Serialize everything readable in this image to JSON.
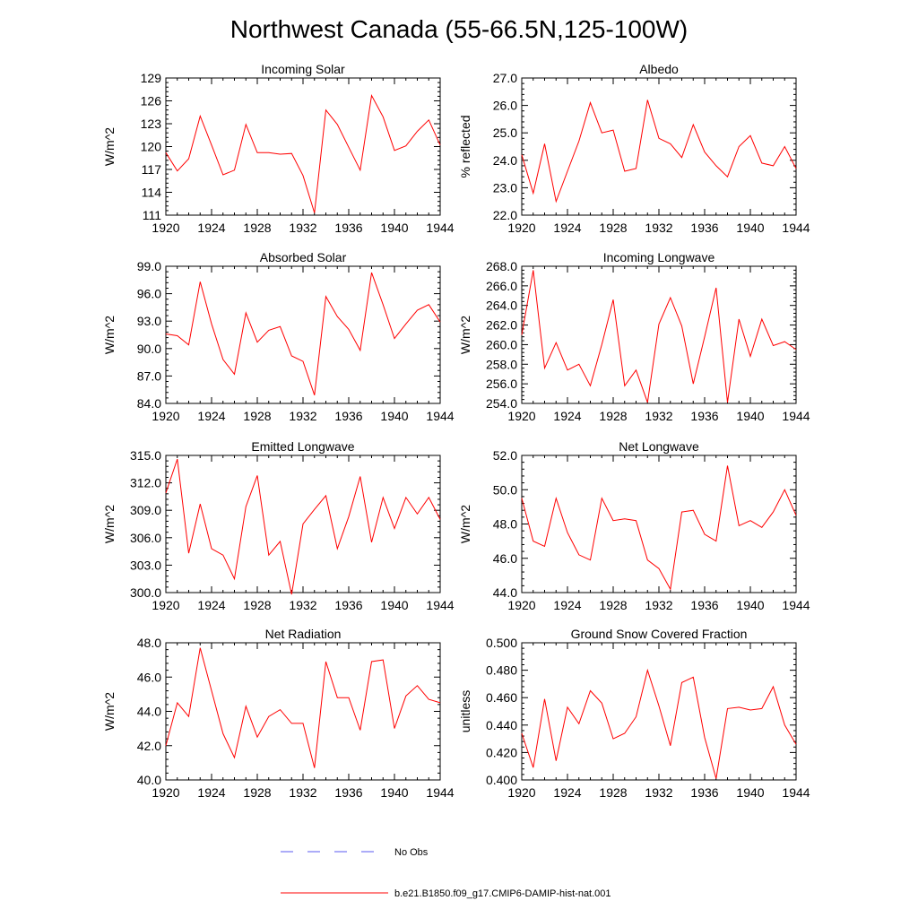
{
  "figure": {
    "title": "Northwest Canada (55-66.5N,125-100W)"
  },
  "legend": {
    "placement": "bottom-center",
    "items": [
      {
        "label": "No Obs",
        "color": "#5a5af0",
        "style": "dashed"
      },
      {
        "label": "b.e21.B1850.f09_g17.CMIP6-DAMIP-hist-nat.001",
        "color": "#ff0000",
        "style": "solid"
      }
    ]
  },
  "chart_data": [
    {
      "type": "line",
      "title": "Incoming Solar",
      "ylabel": "W/m^2",
      "xlabel": "",
      "x": [
        1920,
        1921,
        1922,
        1923,
        1924,
        1925,
        1926,
        1927,
        1928,
        1929,
        1930,
        1931,
        1932,
        1933,
        1934,
        1935,
        1936,
        1937,
        1938,
        1939,
        1940,
        1941,
        1942,
        1943,
        1944
      ],
      "xlim": [
        1920,
        1944
      ],
      "ylim": [
        111,
        129
      ],
      "xticks": [
        1920,
        1924,
        1928,
        1932,
        1936,
        1940,
        1944
      ],
      "yticks": [
        111,
        114,
        117,
        120,
        123,
        126,
        129
      ],
      "ytick_labels": [
        "111",
        "114",
        "117",
        "120",
        "123",
        "126",
        "129"
      ],
      "series": [
        {
          "color": "#ff0000",
          "values": [
            119.2,
            116.8,
            118.4,
            124.0,
            120.2,
            116.3,
            116.9,
            122.9,
            119.2,
            119.2,
            119.0,
            119.1,
            116.2,
            111.3,
            124.8,
            122.9,
            119.9,
            116.9,
            126.7,
            123.9,
            119.5,
            120.1,
            122.0,
            123.5,
            120.2
          ]
        }
      ]
    },
    {
      "type": "line",
      "title": "Albedo",
      "ylabel": "% reflected",
      "xlabel": "",
      "x": [
        1920,
        1921,
        1922,
        1923,
        1924,
        1925,
        1926,
        1927,
        1928,
        1929,
        1930,
        1931,
        1932,
        1933,
        1934,
        1935,
        1936,
        1937,
        1938,
        1939,
        1940,
        1941,
        1942,
        1943,
        1944
      ],
      "xlim": [
        1920,
        1944
      ],
      "ylim": [
        22.0,
        27.0
      ],
      "xticks": [
        1920,
        1924,
        1928,
        1932,
        1936,
        1940,
        1944
      ],
      "yticks": [
        22.0,
        23.0,
        24.0,
        25.0,
        26.0,
        27.0
      ],
      "ytick_labels": [
        "22.0",
        "23.0",
        "24.0",
        "25.0",
        "26.0",
        "27.0"
      ],
      "series": [
        {
          "color": "#ff0000",
          "values": [
            24.2,
            22.8,
            24.6,
            22.5,
            23.6,
            24.7,
            26.1,
            25.0,
            25.1,
            23.6,
            23.7,
            26.2,
            24.8,
            24.6,
            24.1,
            25.3,
            24.3,
            23.8,
            23.4,
            24.5,
            24.9,
            23.9,
            23.8,
            24.5,
            23.7
          ]
        }
      ]
    },
    {
      "type": "line",
      "title": "Absorbed Solar",
      "ylabel": "W/m^2",
      "xlabel": "",
      "x": [
        1920,
        1921,
        1922,
        1923,
        1924,
        1925,
        1926,
        1927,
        1928,
        1929,
        1930,
        1931,
        1932,
        1933,
        1934,
        1935,
        1936,
        1937,
        1938,
        1939,
        1940,
        1941,
        1942,
        1943,
        1944
      ],
      "xlim": [
        1920,
        1944
      ],
      "ylim": [
        84.0,
        99.0
      ],
      "xticks": [
        1920,
        1924,
        1928,
        1932,
        1936,
        1940,
        1944
      ],
      "yticks": [
        84.0,
        87.0,
        90.0,
        93.0,
        96.0,
        99.0
      ],
      "ytick_labels": [
        "84.0",
        "87.0",
        "90.0",
        "93.0",
        "96.0",
        "99.0"
      ],
      "series": [
        {
          "color": "#ff0000",
          "values": [
            91.6,
            91.4,
            90.4,
            97.3,
            92.7,
            88.8,
            87.2,
            93.9,
            90.7,
            92.0,
            92.4,
            89.2,
            88.6,
            84.9,
            95.7,
            93.5,
            92.1,
            89.8,
            98.3,
            94.8,
            91.1,
            92.7,
            94.2,
            94.8,
            92.9
          ]
        }
      ]
    },
    {
      "type": "line",
      "title": "Incoming Longwave",
      "ylabel": "W/m^2",
      "xlabel": "",
      "x": [
        1920,
        1921,
        1922,
        1923,
        1924,
        1925,
        1926,
        1927,
        1928,
        1929,
        1930,
        1931,
        1932,
        1933,
        1934,
        1935,
        1936,
        1937,
        1938,
        1939,
        1940,
        1941,
        1942,
        1943,
        1944
      ],
      "xlim": [
        1920,
        1944
      ],
      "ylim": [
        254.0,
        268.0
      ],
      "xticks": [
        1920,
        1924,
        1928,
        1932,
        1936,
        1940,
        1944
      ],
      "yticks": [
        254.0,
        256.0,
        258.0,
        260.0,
        262.0,
        264.0,
        266.0,
        268.0
      ],
      "ytick_labels": [
        "254.0",
        "256.0",
        "258.0",
        "260.0",
        "262.0",
        "264.0",
        "266.0",
        "268.0"
      ],
      "series": [
        {
          "color": "#ff0000",
          "values": [
            261.0,
            267.6,
            257.6,
            260.2,
            257.4,
            258.0,
            255.8,
            260.0,
            264.6,
            255.8,
            257.4,
            254.1,
            262.1,
            264.8,
            261.9,
            256.0,
            260.8,
            265.8,
            254.1,
            262.6,
            258.8,
            262.6,
            259.9,
            260.3,
            259.5
          ]
        }
      ]
    },
    {
      "type": "line",
      "title": "Emitted Longwave",
      "ylabel": "W/m^2",
      "xlabel": "",
      "x": [
        1920,
        1921,
        1922,
        1923,
        1924,
        1925,
        1926,
        1927,
        1928,
        1929,
        1930,
        1931,
        1932,
        1933,
        1934,
        1935,
        1936,
        1937,
        1938,
        1939,
        1940,
        1941,
        1942,
        1943,
        1944
      ],
      "xlim": [
        1920,
        1944
      ],
      "ylim": [
        300.0,
        315.0
      ],
      "xticks": [
        1920,
        1924,
        1928,
        1932,
        1936,
        1940,
        1944
      ],
      "yticks": [
        300.0,
        303.0,
        306.0,
        309.0,
        312.0,
        315.0
      ],
      "ytick_labels": [
        "300.0",
        "303.0",
        "306.0",
        "309.0",
        "312.0",
        "315.0"
      ],
      "series": [
        {
          "color": "#ff0000",
          "values": [
            310.9,
            314.6,
            304.3,
            309.7,
            304.8,
            304.1,
            301.5,
            309.4,
            312.8,
            304.1,
            305.6,
            299.8,
            307.5,
            309.1,
            310.6,
            304.8,
            308.3,
            312.7,
            305.5,
            310.4,
            307.0,
            310.4,
            308.6,
            310.4,
            308.0
          ]
        }
      ]
    },
    {
      "type": "line",
      "title": "Net Longwave",
      "ylabel": "W/m^2",
      "xlabel": "",
      "x": [
        1920,
        1921,
        1922,
        1923,
        1924,
        1925,
        1926,
        1927,
        1928,
        1929,
        1930,
        1931,
        1932,
        1933,
        1934,
        1935,
        1936,
        1937,
        1938,
        1939,
        1940,
        1941,
        1942,
        1943,
        1944
      ],
      "xlim": [
        1920,
        1944
      ],
      "ylim": [
        44.0,
        52.0
      ],
      "xticks": [
        1920,
        1924,
        1928,
        1932,
        1936,
        1940,
        1944
      ],
      "yticks": [
        44.0,
        46.0,
        48.0,
        50.0,
        52.0
      ],
      "ytick_labels": [
        "44.0",
        "46.0",
        "48.0",
        "50.0",
        "52.0"
      ],
      "series": [
        {
          "color": "#ff0000",
          "values": [
            49.5,
            47.0,
            46.7,
            49.5,
            47.5,
            46.2,
            45.9,
            49.5,
            48.2,
            48.3,
            48.2,
            45.9,
            45.4,
            44.2,
            48.7,
            48.8,
            47.4,
            47.0,
            51.4,
            47.9,
            48.2,
            47.8,
            48.7,
            50.0,
            48.5
          ]
        }
      ]
    },
    {
      "type": "line",
      "title": "Net Radiation",
      "ylabel": "W/m^2",
      "xlabel": "",
      "x": [
        1920,
        1921,
        1922,
        1923,
        1924,
        1925,
        1926,
        1927,
        1928,
        1929,
        1930,
        1931,
        1932,
        1933,
        1934,
        1935,
        1936,
        1937,
        1938,
        1939,
        1940,
        1941,
        1942,
        1943,
        1944
      ],
      "xlim": [
        1920,
        1944
      ],
      "ylim": [
        40.0,
        48.0
      ],
      "xticks": [
        1920,
        1924,
        1928,
        1932,
        1936,
        1940,
        1944
      ],
      "yticks": [
        40.0,
        42.0,
        44.0,
        46.0,
        48.0
      ],
      "ytick_labels": [
        "40.0",
        "42.0",
        "44.0",
        "46.0",
        "48.0"
      ],
      "series": [
        {
          "color": "#ff0000",
          "values": [
            42.0,
            44.5,
            43.7,
            47.7,
            45.2,
            42.7,
            41.3,
            44.3,
            42.5,
            43.7,
            44.1,
            43.3,
            43.3,
            40.7,
            46.9,
            44.8,
            44.8,
            42.9,
            46.9,
            47.0,
            43.0,
            44.9,
            45.5,
            44.7,
            44.5
          ]
        }
      ]
    },
    {
      "type": "line",
      "title": "Ground Snow Covered Fraction",
      "ylabel": "unitless",
      "xlabel": "",
      "x": [
        1920,
        1921,
        1922,
        1923,
        1924,
        1925,
        1926,
        1927,
        1928,
        1929,
        1930,
        1931,
        1932,
        1933,
        1934,
        1935,
        1936,
        1937,
        1938,
        1939,
        1940,
        1941,
        1942,
        1943,
        1944
      ],
      "xlim": [
        1920,
        1944
      ],
      "ylim": [
        0.4,
        0.5
      ],
      "xticks": [
        1920,
        1924,
        1928,
        1932,
        1936,
        1940,
        1944
      ],
      "yticks": [
        0.4,
        0.42,
        0.44,
        0.46,
        0.48,
        0.5
      ],
      "ytick_labels": [
        "0.400",
        "0.420",
        "0.440",
        "0.460",
        "0.480",
        "0.500"
      ],
      "series": [
        {
          "color": "#ff0000",
          "values": [
            0.434,
            0.409,
            0.459,
            0.414,
            0.453,
            0.441,
            0.465,
            0.456,
            0.43,
            0.434,
            0.446,
            0.48,
            0.454,
            0.425,
            0.471,
            0.475,
            0.431,
            0.401,
            0.452,
            0.453,
            0.451,
            0.452,
            0.468,
            0.44,
            0.426
          ]
        }
      ]
    }
  ]
}
